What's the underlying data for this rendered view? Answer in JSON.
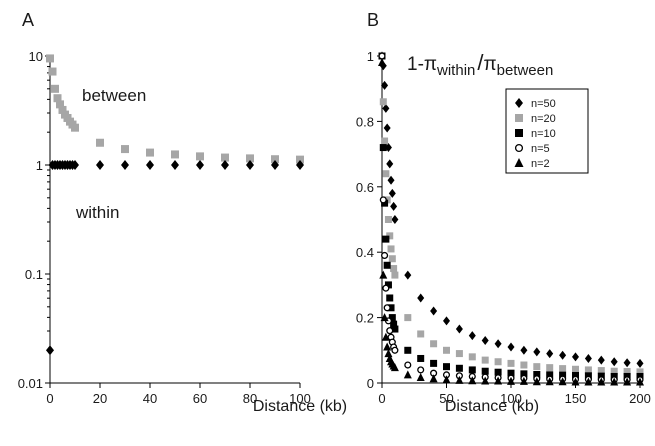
{
  "chart_data": [
    {
      "panel_label": "A",
      "type": "scatter",
      "xlabel": "Distance (kb)",
      "ylabel": "",
      "xlim": [
        0,
        100
      ],
      "ylim": [
        0.01,
        10
      ],
      "y_scale": "log",
      "x_ticks": [
        0,
        20,
        40,
        60,
        80,
        100
      ],
      "y_ticks": [
        0.01,
        0.1,
        1,
        10
      ],
      "x_tick_labels": [
        "0",
        "20",
        "40",
        "60",
        "80",
        "100"
      ],
      "y_tick_labels": [
        "0.01",
        "0.1",
        "1",
        "10"
      ],
      "grid": false,
      "legend": "none",
      "annotations": [
        {
          "text": "between",
          "series": "between"
        },
        {
          "text": "within",
          "series": "within"
        }
      ],
      "series": [
        {
          "name": "between",
          "marker": "square",
          "color": "#a6a6a6",
          "x": [
            0,
            1,
            2,
            3,
            4,
            5,
            6,
            7,
            8,
            9,
            10,
            20,
            30,
            40,
            50,
            60,
            70,
            80,
            90,
            100
          ],
          "y": [
            9.5,
            7.2,
            5.0,
            4.1,
            3.6,
            3.2,
            2.9,
            2.7,
            2.5,
            2.35,
            2.2,
            1.6,
            1.4,
            1.3,
            1.25,
            1.2,
            1.17,
            1.15,
            1.13,
            1.12
          ]
        },
        {
          "name": "within",
          "marker": "diamond",
          "color": "#000000",
          "x": [
            0,
            1,
            2,
            3,
            4,
            5,
            6,
            7,
            8,
            9,
            10,
            20,
            30,
            40,
            50,
            60,
            70,
            80,
            90,
            100
          ],
          "y": [
            0.02,
            1,
            1,
            1,
            1,
            1,
            1,
            1,
            1,
            1,
            1,
            1,
            1,
            1,
            1,
            1,
            1,
            1,
            1,
            1
          ]
        }
      ]
    },
    {
      "panel_label": "B",
      "type": "scatter",
      "title_parts": {
        "prefix": "1-",
        "num_symbol": "π",
        "num_sub": "within",
        "slash": "/",
        "den_symbol": "π",
        "den_sub": "between"
      },
      "xlabel": "Distance (kb)",
      "ylabel": "",
      "xlim": [
        0,
        200
      ],
      "ylim": [
        0,
        1
      ],
      "x_ticks": [
        0,
        50,
        100,
        150,
        200
      ],
      "y_ticks": [
        0,
        0.2,
        0.4,
        0.6,
        0.8,
        1
      ],
      "x_tick_labels": [
        "0",
        "50",
        "100",
        "150",
        "200"
      ],
      "y_tick_labels": [
        "0",
        "0.2",
        "0.4",
        "0.6",
        "0.8",
        "1"
      ],
      "grid": false,
      "legend": "top-right",
      "series": [
        {
          "name": "n=50",
          "marker": "diamond",
          "color": "#000000",
          "x": [
            0,
            1,
            2,
            3,
            4,
            5,
            6,
            7,
            8,
            9,
            10,
            20,
            30,
            40,
            50,
            60,
            70,
            80,
            90,
            100,
            110,
            120,
            130,
            140,
            150,
            160,
            170,
            180,
            190,
            200
          ],
          "y": [
            1.0,
            0.97,
            0.91,
            0.84,
            0.78,
            0.72,
            0.67,
            0.62,
            0.58,
            0.54,
            0.5,
            0.33,
            0.26,
            0.22,
            0.19,
            0.165,
            0.145,
            0.13,
            0.12,
            0.11,
            0.1,
            0.095,
            0.09,
            0.085,
            0.08,
            0.075,
            0.07,
            0.065,
            0.062,
            0.06
          ]
        },
        {
          "name": "n=20",
          "marker": "square",
          "color": "#a6a6a6",
          "x": [
            0,
            1,
            2,
            3,
            4,
            5,
            6,
            7,
            8,
            9,
            10,
            20,
            30,
            40,
            50,
            60,
            70,
            80,
            90,
            100,
            110,
            120,
            130,
            140,
            150,
            160,
            170,
            180,
            190,
            200
          ],
          "y": [
            1.0,
            0.86,
            0.74,
            0.64,
            0.56,
            0.5,
            0.45,
            0.41,
            0.38,
            0.35,
            0.33,
            0.2,
            0.15,
            0.12,
            0.1,
            0.09,
            0.08,
            0.07,
            0.065,
            0.06,
            0.055,
            0.05,
            0.047,
            0.044,
            0.042,
            0.04,
            0.038,
            0.036,
            0.035,
            0.034
          ]
        },
        {
          "name": "n=10",
          "marker": "square",
          "color": "#000000",
          "x": [
            0,
            1,
            2,
            3,
            4,
            5,
            6,
            7,
            8,
            9,
            10,
            20,
            30,
            40,
            50,
            60,
            70,
            80,
            90,
            100,
            110,
            120,
            130,
            140,
            150,
            160,
            170,
            180,
            190,
            200
          ],
          "y": [
            1.0,
            0.72,
            0.55,
            0.44,
            0.36,
            0.3,
            0.26,
            0.23,
            0.2,
            0.18,
            0.165,
            0.1,
            0.075,
            0.06,
            0.05,
            0.045,
            0.04,
            0.036,
            0.033,
            0.03,
            0.028,
            0.026,
            0.025,
            0.024,
            0.023,
            0.022,
            0.021,
            0.02,
            0.02,
            0.02
          ]
        },
        {
          "name": "n=5",
          "marker": "circle-open",
          "color": "#000000",
          "x": [
            0,
            1,
            2,
            3,
            4,
            5,
            6,
            7,
            8,
            9,
            10,
            20,
            30,
            40,
            50,
            60,
            70,
            80,
            90,
            100,
            110,
            120,
            130,
            140,
            150,
            160,
            170,
            180,
            190,
            200
          ],
          "y": [
            1.0,
            0.56,
            0.39,
            0.29,
            0.23,
            0.19,
            0.16,
            0.14,
            0.125,
            0.11,
            0.1,
            0.055,
            0.04,
            0.03,
            0.025,
            0.022,
            0.02,
            0.018,
            0.016,
            0.015,
            0.014,
            0.013,
            0.012,
            0.012,
            0.011,
            0.011,
            0.01,
            0.01,
            0.01,
            0.01
          ]
        },
        {
          "name": "n=2",
          "marker": "triangle",
          "color": "#000000",
          "x": [
            0,
            1,
            2,
            3,
            4,
            5,
            6,
            7,
            8,
            9,
            10,
            20,
            30,
            40,
            50,
            60,
            70,
            80,
            90,
            100,
            110,
            120,
            130,
            140,
            150,
            160,
            170,
            180,
            190,
            200
          ],
          "y": [
            0.98,
            0.33,
            0.2,
            0.14,
            0.11,
            0.09,
            0.075,
            0.065,
            0.058,
            0.052,
            0.047,
            0.025,
            0.017,
            0.013,
            0.01,
            0.008,
            0.007,
            0.006,
            0.006,
            0.005,
            0.005,
            0.004,
            0.004,
            0.004,
            0.003,
            0.003,
            0.003,
            0.003,
            0.003,
            0.003
          ]
        }
      ]
    }
  ]
}
